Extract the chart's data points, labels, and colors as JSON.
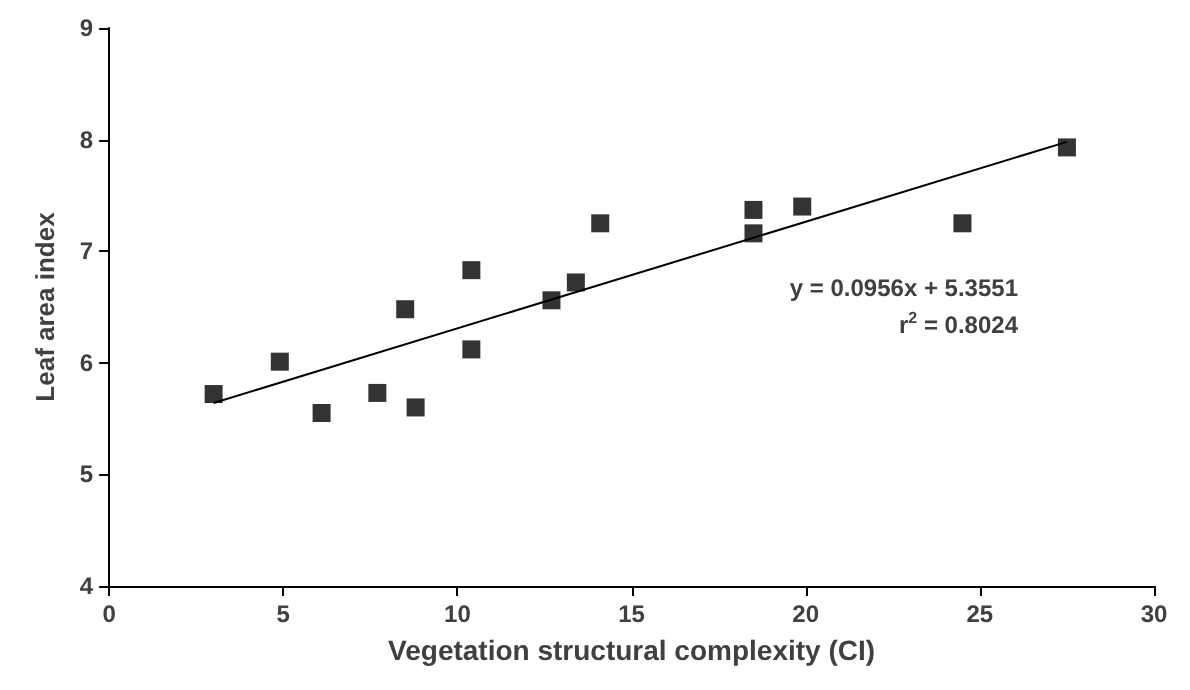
{
  "chart_data": {
    "type": "scatter",
    "xlabel": "Vegetation structural complexity (CI)",
    "ylabel": "Leaf area index",
    "annotations": [
      "y = 0.0956x + 5.3551",
      "r$^{2}$ = 0.8024"
    ],
    "marker": "square",
    "grid": false,
    "xlim": [
      0,
      30
    ],
    "xticks": [
      0,
      5,
      10,
      15,
      20,
      25,
      30
    ],
    "ylim": [
      4,
      9
    ],
    "yticks": [
      4,
      5,
      6,
      7,
      8,
      9
    ],
    "series": [
      {
        "color": "#000000",
        "x": [
          3.0,
          4.9,
          6.1,
          7.7,
          8.5,
          8.8,
          10.4,
          10.4,
          12.7,
          13.4,
          14.1,
          18.5,
          18.5,
          19.9,
          24.5,
          27.5
        ],
        "values": [
          5.72,
          6.01,
          5.55,
          5.73,
          6.48,
          5.6,
          6.83,
          6.12,
          6.56,
          6.72,
          7.25,
          7.37,
          7.16,
          7.4,
          7.25,
          7.93
        ]
      },
      {
        "type": "line",
        "marker": "none",
        "color": "#000000",
        "x": [
          3.0,
          27.5
        ],
        "values": [
          5.64,
          7.98
        ]
      }
    ]
  }
}
